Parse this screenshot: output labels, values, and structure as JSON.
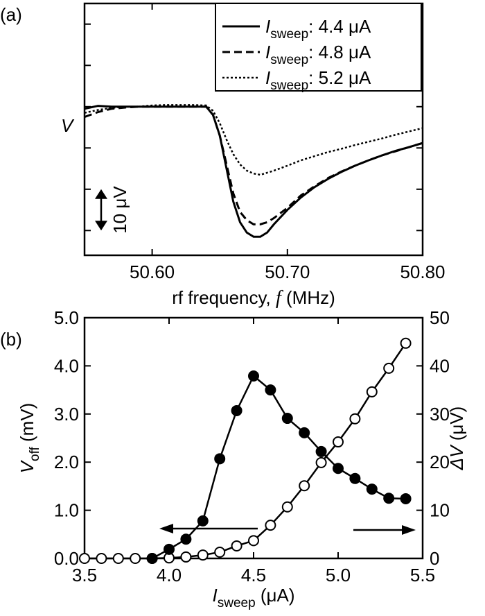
{
  "chart_data": [
    {
      "type": "line",
      "panel_label": "(a)",
      "xlabel": [
        "rf frequency, ",
        "f",
        " (MHz)"
      ],
      "ylabel": "V",
      "x": [
        50.55,
        50.56,
        50.57,
        50.58,
        50.59,
        50.6,
        50.61,
        50.62,
        50.63,
        50.64,
        50.645,
        50.65,
        50.655,
        50.66,
        50.665,
        50.67,
        50.675,
        50.68,
        50.685,
        50.69,
        50.7,
        50.71,
        50.72,
        50.73,
        50.74,
        50.75,
        50.76,
        50.77,
        50.78,
        50.79,
        50.8
      ],
      "xlim": [
        50.55,
        50.8
      ],
      "xticks": [
        {
          "value": 50.6,
          "label": "50.60"
        },
        {
          "value": 50.7,
          "label": "50.70"
        },
        {
          "value": 50.8,
          "label": "50.80"
        }
      ],
      "ylim": [
        -36,
        25
      ],
      "yticks": [
        -30,
        -20,
        -10,
        0,
        10,
        20
      ],
      "ytick_labels": false,
      "legend": "upper right",
      "series": [
        {
          "name": [
            "I",
            "sweep",
            ": 4.4 μA"
          ],
          "color": "#000000",
          "dash": "solid",
          "values": [
            -0.5,
            0.2,
            0,
            0,
            0,
            0,
            0,
            0,
            0,
            0,
            -2,
            -7,
            -15,
            -23,
            -28,
            -30.5,
            -31.5,
            -31.5,
            -30.5,
            -28.5,
            -25,
            -22,
            -19.5,
            -17.5,
            -15.8,
            -14.3,
            -13,
            -11.8,
            -10.7,
            -9.8,
            -8.8
          ]
        },
        {
          "name": [
            "I",
            "sweep",
            ": 4.8 μA"
          ],
          "color": "#000000",
          "dash": "dashed",
          "values": [
            -2.5,
            -1.3,
            -0.5,
            -0.2,
            0,
            0,
            0,
            0,
            0,
            0,
            -2,
            -7,
            -14,
            -21,
            -25.5,
            -27.5,
            -28.5,
            -28.5,
            -28,
            -27,
            -24.5,
            -21.5,
            -19.3,
            -17.3,
            -15.7,
            -14.3,
            -13,
            -11.8,
            -10.8,
            -9.8,
            -8.8
          ]
        },
        {
          "name": [
            "I",
            "sweep",
            ": 5.2 μA"
          ],
          "color": "#000000",
          "dash": "dotted",
          "values": [
            -1.5,
            -0.8,
            -0.3,
            0,
            0,
            0.3,
            0.4,
            0.4,
            0.4,
            0.3,
            -1,
            -4,
            -8,
            -11.5,
            -14,
            -15.5,
            -16.2,
            -16.5,
            -16,
            -15.5,
            -14.3,
            -13,
            -12,
            -11,
            -10.2,
            -9.3,
            -8.5,
            -7.7,
            -6.8,
            -6,
            -5.2
          ]
        }
      ],
      "scale_bar": {
        "value": 10,
        "label": "10 μV"
      }
    },
    {
      "type": "line",
      "panel_label": "(b)",
      "xlabel": [
        "I",
        "sweep",
        " (μA)"
      ],
      "ylabel": [
        "V",
        "off",
        " (mV)"
      ],
      "y2label": [
        "ΔV",
        " (μV)"
      ],
      "xlim": [
        3.5,
        5.5
      ],
      "xticks": [
        3.5,
        {
          "value": 4,
          "label": "4.0"
        },
        4.5,
        {
          "value": 5,
          "label": "5.0"
        },
        5.5
      ],
      "ylim": [
        0,
        5
      ],
      "yticks": [
        {
          "value": 0,
          "label": "0.0"
        },
        {
          "value": 1,
          "label": "1.0"
        },
        {
          "value": 2,
          "label": "2.0"
        },
        {
          "value": 3,
          "label": "3.0"
        },
        {
          "value": 4,
          "label": "4.0"
        },
        {
          "value": 5,
          "label": "5.0"
        }
      ],
      "ytick_labels": true,
      "y2lim": [
        0,
        50
      ],
      "y2ticks": [
        0,
        10,
        20,
        30,
        40,
        50
      ],
      "series": [
        {
          "color": "#000000",
          "dash": "solid",
          "marker": "open",
          "x": [
            3.5,
            3.6,
            3.7,
            3.8,
            3.9,
            4.0,
            4.1,
            4.2,
            4.3,
            4.4,
            4.5,
            4.6,
            4.7,
            4.8,
            4.9,
            5.0,
            5.1,
            5.2,
            5.3,
            5.4
          ],
          "values": [
            0,
            0,
            0,
            0,
            0,
            0.01,
            0.03,
            0.07,
            0.13,
            0.26,
            0.37,
            0.69,
            1.07,
            1.51,
            1.99,
            2.42,
            2.9,
            3.46,
            3.95,
            4.47
          ]
        },
        {
          "color": "#000000",
          "dash": "solid",
          "marker": "filled",
          "axis": "y2",
          "x": [
            3.9,
            4.0,
            4.1,
            4.2,
            4.3,
            4.4,
            4.5,
            4.6,
            4.7,
            4.8,
            4.9,
            5.0,
            5.1,
            5.2,
            5.3,
            5.4
          ],
          "values": [
            0,
            1.9,
            4.0,
            7.8,
            20.7,
            30.7,
            37.9,
            35.0,
            29.1,
            26.1,
            22.2,
            18.7,
            16.6,
            14.4,
            12.5,
            12.4
          ]
        }
      ]
    }
  ]
}
